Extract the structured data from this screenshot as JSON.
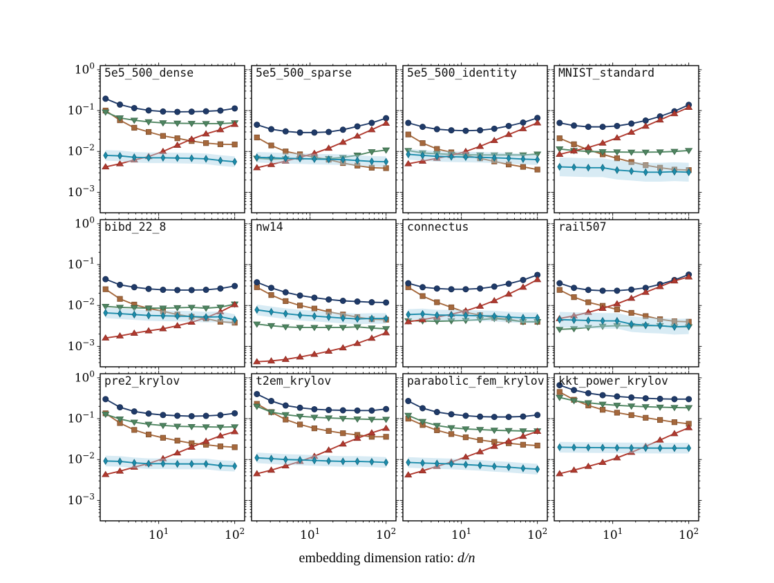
{
  "figure": {
    "xlabel": {
      "text": "embedding dimension ratio: ",
      "math": "d/n"
    },
    "background": "#ffffff"
  },
  "axes": {
    "x_scale": "log",
    "y_scale": "log",
    "xlim": [
      1.7,
      135
    ],
    "ylim": [
      0.000316,
      1.259
    ],
    "x_ticks": [
      {
        "value": 10,
        "label": "10^1"
      },
      {
        "value": 100,
        "label": "10^2"
      }
    ],
    "y_ticks": [
      {
        "value": 1,
        "label": "10^0"
      },
      {
        "value": 0.1,
        "label": "10^−1"
      },
      {
        "value": 0.01,
        "label": "10^−2"
      },
      {
        "value": 0.001,
        "label": "10^−3"
      }
    ]
  },
  "series_meta": [
    {
      "key": "brown_square",
      "marker": "square",
      "color": "#a5683c",
      "edge": "#7d4e2c"
    },
    {
      "key": "green_triangle_down",
      "marker": "triangle-down",
      "color": "#4e8560",
      "edge": "#396549"
    },
    {
      "key": "navy_circle",
      "marker": "circle",
      "color": "#1f3a68",
      "edge": "#152a4e"
    },
    {
      "key": "red_triangle_up",
      "marker": "triangle-up",
      "color": "#b13a2f",
      "edge": "#8a2b23"
    },
    {
      "key": "teal_diamond",
      "marker": "diamond",
      "color": "#1b8cab",
      "edge": "#126880",
      "band": true,
      "band_color": "#a9d3e6"
    }
  ],
  "chart_data": {
    "type": "line",
    "grid": [
      3,
      4
    ],
    "x": [
      2,
      3.09,
      4.77,
      7.37,
      11.4,
      17.6,
      27.1,
      41.9,
      64.8,
      100
    ],
    "subplots": [
      {
        "title": "5e5_500_dense",
        "series": {
          "navy_circle": [
            0.195,
            0.14,
            0.115,
            0.101,
            0.095,
            0.093,
            0.094,
            0.096,
            0.1,
            0.113
          ],
          "brown_square": [
            0.1,
            0.058,
            0.038,
            0.03,
            0.024,
            0.021,
            0.018,
            0.016,
            0.015,
            0.0148
          ],
          "green_triangle_down": [
            0.092,
            0.066,
            0.058,
            0.053,
            0.05,
            0.049,
            0.0485,
            0.048,
            0.048,
            0.05
          ],
          "red_triangle_up": [
            0.0042,
            0.005,
            0.0062,
            0.0075,
            0.01,
            0.0142,
            0.02,
            0.027,
            0.034,
            0.046
          ],
          "teal_diamond": [
            0.008,
            0.0078,
            0.0072,
            0.007,
            0.007,
            0.0069,
            0.0068,
            0.0066,
            0.006,
            0.0056
          ]
        }
      },
      {
        "title": "5e5_500_sparse",
        "series": {
          "navy_circle": [
            0.045,
            0.035,
            0.031,
            0.029,
            0.029,
            0.03,
            0.034,
            0.041,
            0.05,
            0.065
          ],
          "brown_square": [
            0.022,
            0.014,
            0.01,
            0.0085,
            0.0072,
            0.0063,
            0.0052,
            0.0045,
            0.004,
            0.0039
          ],
          "green_triangle_down": [
            0.0068,
            0.0065,
            0.0066,
            0.0066,
            0.0066,
            0.0067,
            0.0071,
            0.0081,
            0.0098,
            0.0108
          ],
          "red_triangle_up": [
            0.004,
            0.0048,
            0.0058,
            0.0072,
            0.009,
            0.012,
            0.0168,
            0.0238,
            0.034,
            0.049
          ],
          "teal_diamond": [
            0.0072,
            0.007,
            0.0068,
            0.0067,
            0.0065,
            0.0064,
            0.0063,
            0.006,
            0.0057,
            0.0056
          ]
        }
      },
      {
        "title": "5e5_500_identity",
        "series": {
          "navy_circle": [
            0.05,
            0.04,
            0.035,
            0.033,
            0.032,
            0.033,
            0.036,
            0.042,
            0.051,
            0.066
          ],
          "brown_square": [
            0.026,
            0.016,
            0.0115,
            0.0095,
            0.008,
            0.0068,
            0.0057,
            0.0048,
            0.0042,
            0.0036
          ],
          "green_triangle_down": [
            0.0105,
            0.0092,
            0.0088,
            0.0085,
            0.0083,
            0.0082,
            0.0082,
            0.0082,
            0.0082,
            0.0086
          ],
          "red_triangle_up": [
            0.005,
            0.0058,
            0.0068,
            0.008,
            0.01,
            0.0133,
            0.0185,
            0.026,
            0.036,
            0.05
          ],
          "teal_diamond": [
            0.0085,
            0.008,
            0.0076,
            0.0074,
            0.0073,
            0.0072,
            0.007,
            0.0068,
            0.0065,
            0.0063
          ]
        }
      },
      {
        "title": "MNIST_standard",
        "teal_band": 1.7,
        "series": {
          "navy_circle": [
            0.05,
            0.043,
            0.04,
            0.04,
            0.042,
            0.048,
            0.057,
            0.072,
            0.096,
            0.138
          ],
          "brown_square": [
            0.021,
            0.015,
            0.011,
            0.0085,
            0.0068,
            0.0055,
            0.0046,
            0.004,
            0.0036,
            0.0035
          ],
          "green_triangle_down": [
            0.0115,
            0.0105,
            0.01,
            0.0098,
            0.0097,
            0.0096,
            0.0096,
            0.0097,
            0.01,
            0.0105
          ],
          "red_triangle_up": [
            0.0085,
            0.0103,
            0.0125,
            0.016,
            0.0215,
            0.0295,
            0.0415,
            0.059,
            0.084,
            0.12
          ],
          "teal_diamond": [
            0.0042,
            0.0041,
            0.004,
            0.004,
            0.0035,
            0.0033,
            0.0031,
            0.0031,
            0.0032,
            0.0031
          ]
        }
      },
      {
        "title": "bibd_22_8",
        "series": {
          "navy_circle": [
            0.044,
            0.032,
            0.028,
            0.0255,
            0.0242,
            0.0238,
            0.0238,
            0.0242,
            0.026,
            0.03
          ],
          "brown_square": [
            0.025,
            0.0145,
            0.0105,
            0.0085,
            0.0072,
            0.006,
            0.0053,
            0.0048,
            0.004,
            0.0038
          ],
          "green_triangle_down": [
            0.0095,
            0.009,
            0.0088,
            0.0086,
            0.0086,
            0.0088,
            0.009,
            0.0086,
            0.0091,
            0.0108
          ],
          "red_triangle_up": [
            0.0016,
            0.0018,
            0.0021,
            0.0024,
            0.0027,
            0.0032,
            0.0039,
            0.005,
            0.007,
            0.0105
          ],
          "teal_diamond": [
            0.0066,
            0.0063,
            0.006,
            0.0057,
            0.0056,
            0.0055,
            0.0054,
            0.0052,
            0.0053,
            0.0045
          ]
        }
      },
      {
        "title": "nw14",
        "series": {
          "navy_circle": [
            0.037,
            0.027,
            0.021,
            0.0175,
            0.0155,
            0.014,
            0.013,
            0.0125,
            0.012,
            0.0118
          ],
          "brown_square": [
            0.028,
            0.018,
            0.0128,
            0.01,
            0.0084,
            0.007,
            0.006,
            0.0052,
            0.0046,
            0.0045
          ],
          "green_triangle_down": [
            0.0035,
            0.0032,
            0.003,
            0.0029,
            0.0029,
            0.0029,
            0.0029,
            0.003,
            0.0028,
            0.0027
          ],
          "red_triangle_up": [
            0.00042,
            0.00044,
            0.00048,
            0.00055,
            0.00064,
            0.00076,
            0.00092,
            0.00118,
            0.00158,
            0.00215
          ],
          "teal_diamond": [
            0.0078,
            0.007,
            0.0063,
            0.0058,
            0.0055,
            0.0052,
            0.0049,
            0.0047,
            0.0048,
            0.0048
          ]
        }
      },
      {
        "title": "connectus",
        "series": {
          "navy_circle": [
            0.035,
            0.028,
            0.026,
            0.025,
            0.025,
            0.026,
            0.029,
            0.034,
            0.042,
            0.056
          ],
          "brown_square": [
            0.028,
            0.017,
            0.012,
            0.009,
            0.0068,
            0.0058,
            0.005,
            0.0046,
            0.004,
            0.004
          ],
          "green_triangle_down": [
            0.0042,
            0.0042,
            0.0041,
            0.0042,
            0.0043,
            0.0045,
            0.0048,
            0.0044,
            0.004,
            0.004
          ],
          "red_triangle_up": [
            0.004,
            0.0045,
            0.0052,
            0.0061,
            0.0074,
            0.0096,
            0.0131,
            0.019,
            0.028,
            0.043
          ],
          "teal_diamond": [
            0.006,
            0.0062,
            0.0058,
            0.0058,
            0.0057,
            0.0056,
            0.0055,
            0.0052,
            0.005,
            0.005
          ]
        }
      },
      {
        "title": "rail507",
        "teal_band": 1.55,
        "series": {
          "navy_circle": [
            0.035,
            0.027,
            0.024,
            0.023,
            0.023,
            0.0245,
            0.027,
            0.033,
            0.042,
            0.057
          ],
          "brown_square": [
            0.024,
            0.016,
            0.012,
            0.0098,
            0.008,
            0.0066,
            0.0055,
            0.0046,
            0.0041,
            0.004
          ],
          "green_triangle_down": [
            0.0026,
            0.0027,
            0.0029,
            0.0031,
            0.0032,
            0.0032,
            0.0032,
            0.0032,
            0.003,
            0.003
          ],
          "red_triangle_up": [
            0.0048,
            0.0056,
            0.0068,
            0.0085,
            0.011,
            0.015,
            0.021,
            0.029,
            0.04,
            0.05
          ],
          "teal_diamond": [
            0.0045,
            0.0044,
            0.0043,
            0.0042,
            0.0042,
            0.0035,
            0.0033,
            0.0032,
            0.003,
            0.0031
          ]
        }
      },
      {
        "title": "pre2_krylov",
        "series": {
          "navy_circle": [
            0.3,
            0.19,
            0.15,
            0.133,
            0.123,
            0.118,
            0.115,
            0.117,
            0.122,
            0.135
          ],
          "brown_square": [
            0.135,
            0.078,
            0.053,
            0.041,
            0.034,
            0.029,
            0.025,
            0.023,
            0.021,
            0.02
          ],
          "green_triangle_down": [
            0.128,
            0.098,
            0.082,
            0.073,
            0.068,
            0.065,
            0.064,
            0.063,
            0.062,
            0.063
          ],
          "red_triangle_up": [
            0.0043,
            0.0052,
            0.0065,
            0.008,
            0.0105,
            0.0145,
            0.02,
            0.028,
            0.038,
            0.048
          ],
          "teal_diamond": [
            0.0092,
            0.009,
            0.0083,
            0.0079,
            0.0079,
            0.0078,
            0.0078,
            0.0078,
            0.0071,
            0.0069
          ]
        }
      },
      {
        "title": "t2em_krylov",
        "series": {
          "navy_circle": [
            0.4,
            0.27,
            0.21,
            0.185,
            0.17,
            0.163,
            0.16,
            0.158,
            0.158,
            0.172
          ],
          "brown_square": [
            0.23,
            0.145,
            0.095,
            0.072,
            0.058,
            0.05,
            0.044,
            0.04,
            0.036,
            0.036
          ],
          "green_triangle_down": [
            0.2,
            0.145,
            0.125,
            0.114,
            0.108,
            0.104,
            0.101,
            0.098,
            0.096,
            0.096
          ],
          "red_triangle_up": [
            0.0045,
            0.0055,
            0.007,
            0.009,
            0.012,
            0.017,
            0.024,
            0.033,
            0.045,
            0.058
          ],
          "teal_diamond": [
            0.011,
            0.0105,
            0.01,
            0.0098,
            0.0095,
            0.0092,
            0.009,
            0.009,
            0.0088,
            0.0085
          ]
        }
      },
      {
        "title": "parabolic_fem_krylov",
        "series": {
          "navy_circle": [
            0.27,
            0.18,
            0.145,
            0.128,
            0.118,
            0.112,
            0.11,
            0.11,
            0.113,
            0.123
          ],
          "brown_square": [
            0.1,
            0.07,
            0.052,
            0.042,
            0.035,
            0.03,
            0.027,
            0.025,
            0.023,
            0.022
          ],
          "green_triangle_down": [
            0.12,
            0.085,
            0.068,
            0.06,
            0.056,
            0.054,
            0.052,
            0.051,
            0.05,
            0.05
          ],
          "red_triangle_up": [
            0.0042,
            0.0053,
            0.0068,
            0.0087,
            0.0115,
            0.0155,
            0.021,
            0.028,
            0.037,
            0.049
          ],
          "teal_diamond": [
            0.0085,
            0.0082,
            0.008,
            0.0078,
            0.0075,
            0.0072,
            0.0068,
            0.0065,
            0.0061,
            0.0058
          ]
        }
      },
      {
        "title": "kkt_power_krylov",
        "series": {
          "navy_circle": [
            0.66,
            0.5,
            0.42,
            0.375,
            0.35,
            0.33,
            0.315,
            0.305,
            0.3,
            0.3
          ],
          "brown_square": [
            0.45,
            0.29,
            0.21,
            0.165,
            0.14,
            0.122,
            0.105,
            0.093,
            0.082,
            0.075
          ],
          "green_triangle_down": [
            0.33,
            0.275,
            0.245,
            0.225,
            0.212,
            0.203,
            0.196,
            0.191,
            0.187,
            0.185
          ],
          "red_triangle_up": [
            0.0045,
            0.0055,
            0.0068,
            0.0085,
            0.011,
            0.015,
            0.021,
            0.03,
            0.043,
            0.06
          ],
          "teal_diamond": [
            0.02,
            0.0198,
            0.0196,
            0.0195,
            0.0193,
            0.0192,
            0.0191,
            0.019,
            0.019,
            0.019
          ]
        }
      }
    ]
  }
}
